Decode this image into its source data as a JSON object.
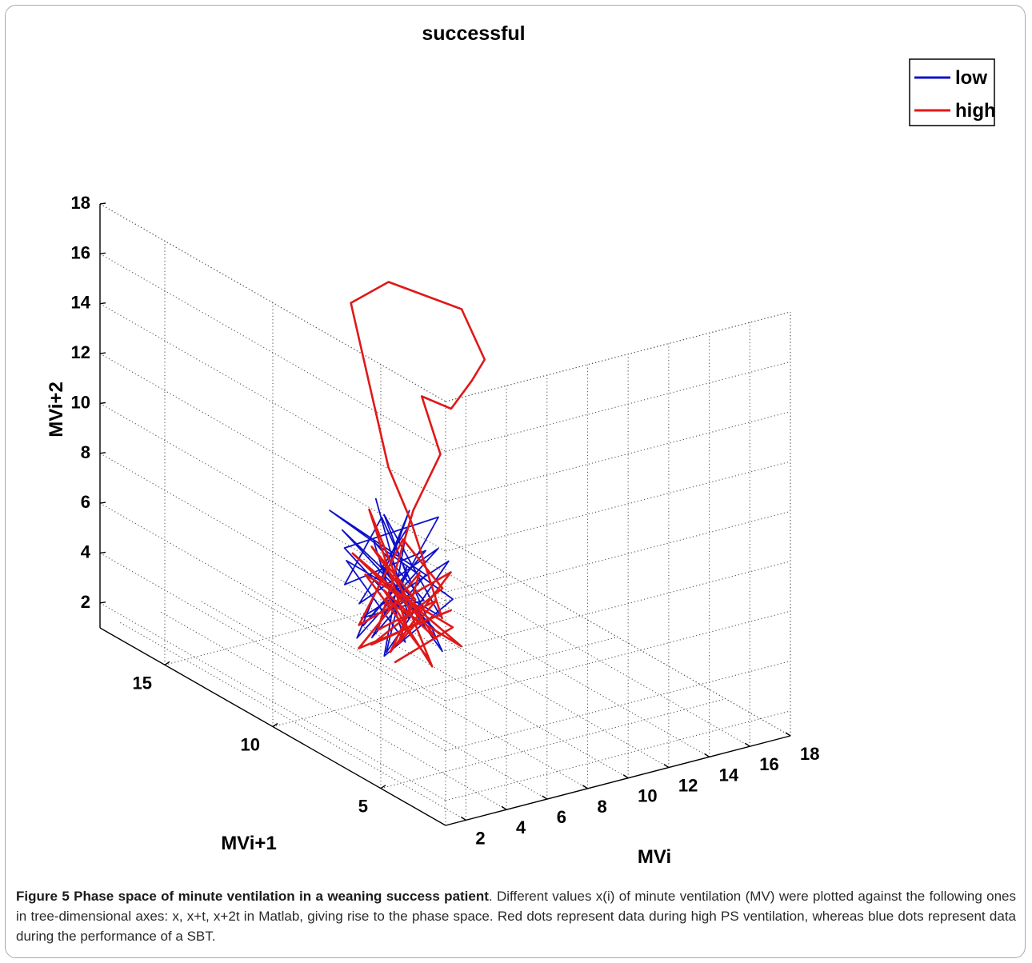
{
  "chart_data": {
    "type": "line3d",
    "title": "successful",
    "xlabel": "MVi",
    "ylabel": "MVi+1",
    "zlabel": "MVi+2",
    "xticks": [
      2,
      4,
      6,
      8,
      10,
      12,
      14,
      16,
      18
    ],
    "yticks": [
      5,
      10,
      15
    ],
    "zticks": [
      2,
      4,
      6,
      8,
      10,
      12,
      14,
      16,
      18
    ],
    "xlim": [
      1,
      18
    ],
    "ylim": [
      2,
      18
    ],
    "zlim": [
      1,
      18
    ],
    "grid": true,
    "legend_position": "top-right",
    "series": [
      {
        "name": "low",
        "color": "#1010c8",
        "points": [
          [
            6.5,
            10.4,
            8.8
          ],
          [
            7.3,
            9.6,
            4.2
          ],
          [
            5.6,
            11.0,
            6.7
          ],
          [
            8.1,
            9.0,
            8.4
          ],
          [
            6.1,
            10.2,
            3.4
          ],
          [
            7.8,
            9.3,
            6.0
          ],
          [
            5.4,
            11.5,
            8.0
          ],
          [
            8.6,
            8.8,
            5.1
          ],
          [
            6.6,
            10.1,
            2.6
          ],
          [
            7.5,
            9.9,
            7.6
          ],
          [
            5.9,
            10.6,
            4.6
          ],
          [
            8.3,
            9.2,
            7.0
          ],
          [
            6.0,
            10.8,
            3.1
          ],
          [
            7.2,
            9.5,
            8.6
          ],
          [
            6.8,
            10.3,
            5.5
          ],
          [
            8.0,
            8.9,
            3.8
          ],
          [
            5.7,
            11.2,
            7.3
          ],
          [
            7.6,
            9.7,
            4.9
          ],
          [
            6.3,
            10.0,
            6.4
          ],
          [
            8.4,
            9.1,
            2.9
          ],
          [
            6.9,
            10.5,
            7.9
          ],
          [
            5.5,
            10.9,
            5.3
          ],
          [
            7.9,
            9.4,
            6.9
          ],
          [
            6.2,
            10.7,
            3.6
          ],
          [
            7.4,
            9.8,
            5.8
          ],
          [
            6.7,
            10.2,
            8.2
          ],
          [
            8.2,
            9.0,
            4.4
          ],
          [
            5.8,
            11.1,
            6.1
          ],
          [
            7.1,
            9.6,
            3.3
          ],
          [
            6.4,
            10.4,
            7.1
          ],
          [
            7.7,
            9.3,
            5.0
          ],
          [
            6.0,
            10.6,
            4.0
          ],
          [
            8.5,
            8.9,
            6.6
          ],
          [
            6.6,
            10.0,
            2.8
          ],
          [
            7.3,
            9.7,
            6.3
          ]
        ]
      },
      {
        "name": "high",
        "color": "#e01818",
        "points": [
          [
            7.0,
            10.0,
            2.3
          ],
          [
            8.7,
            8.9,
            3.9
          ],
          [
            6.2,
            10.6,
            5.7
          ],
          [
            8.0,
            9.3,
            2.5
          ],
          [
            6.7,
            10.2,
            4.8
          ],
          [
            8.9,
            8.7,
            3.2
          ],
          [
            6.0,
            11.0,
            6.4
          ],
          [
            7.8,
            9.4,
            4.1
          ],
          [
            6.4,
            10.5,
            2.9
          ],
          [
            8.3,
            9.0,
            5.5
          ],
          [
            7.2,
            9.8,
            7.3
          ],
          [
            6.1,
            10.8,
            3.6
          ],
          [
            8.5,
            8.8,
            6.2
          ],
          [
            6.9,
            10.1,
            2.7
          ],
          [
            7.6,
            9.6,
            4.9
          ],
          [
            6.3,
            10.4,
            6.9
          ],
          [
            8.2,
            9.2,
            3.4
          ],
          [
            6.8,
            10.3,
            5.1
          ],
          [
            7.9,
            9.1,
            2.4
          ],
          [
            6.5,
            10.7,
            8.2
          ],
          [
            7.3,
            9.7,
            3.8
          ],
          [
            8.6,
            8.9,
            4.6
          ],
          [
            6.2,
            10.9,
            2.6
          ],
          [
            7.7,
            9.5,
            6.0
          ],
          [
            7.1,
            9.9,
            3.1
          ],
          [
            8.1,
            9.1,
            5.0
          ],
          [
            6.6,
            10.4,
            3.5
          ],
          [
            7.5,
            9.6,
            8.5
          ],
          [
            8.2,
            9.0,
            10.9
          ],
          [
            7.6,
            9.3,
            13.2
          ],
          [
            8.3,
            8.6,
            12.9
          ],
          [
            8.9,
            8.2,
            14.1
          ],
          [
            9.1,
            7.8,
            15.1
          ],
          [
            8.5,
            8.3,
            17.0
          ],
          [
            6.6,
            9.9,
            17.7
          ],
          [
            5.7,
            10.8,
            16.6
          ],
          [
            6.2,
            10.4,
            13.4
          ],
          [
            6.7,
            10.0,
            10.2
          ],
          [
            7.5,
            9.7,
            8.0
          ],
          [
            8.4,
            9.1,
            4.2
          ]
        ]
      }
    ]
  },
  "caption": {
    "title": "Figure 5 Phase space of minute ventilation in a weaning success patient",
    "text": ". Different values x(i) of minute ventilation (MV) were plotted against the following ones in tree-dimensional axes: x, x+t, x+2t in Matlab, giving rise to the phase space. Red dots represent data during high PS ventilation, whereas blue dots represent data during the performance of a SBT."
  }
}
